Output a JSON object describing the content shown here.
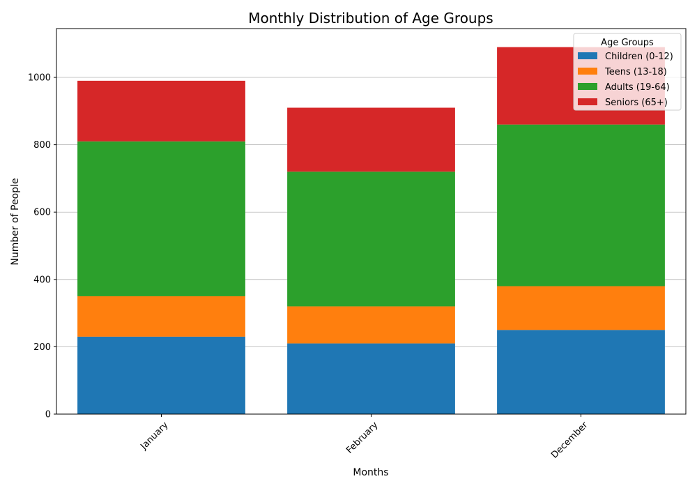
{
  "chart_data": {
    "type": "bar",
    "stacked": true,
    "title": "Monthly Distribution of Age Groups",
    "xlabel": "Months",
    "ylabel": "Number of People",
    "categories": [
      "January",
      "February",
      "December"
    ],
    "series": [
      {
        "name": "Children (0-12)",
        "values": [
          230,
          210,
          250
        ],
        "color": "#1f77b4"
      },
      {
        "name": "Teens (13-18)",
        "values": [
          120,
          110,
          130
        ],
        "color": "#ff7f0e"
      },
      {
        "name": "Adults (19-64)",
        "values": [
          460,
          400,
          480
        ],
        "color": "#2ca02c"
      },
      {
        "name": "Seniors (65+)",
        "values": [
          180,
          190,
          230
        ],
        "color": "#d62728"
      }
    ],
    "ylim": [
      0,
      1145
    ],
    "yticks": [
      0,
      200,
      400,
      600,
      800,
      1000
    ],
    "grid": "y",
    "legend": {
      "title": "Age Groups",
      "position": "top-right"
    },
    "xtick_rotation": 45
  }
}
